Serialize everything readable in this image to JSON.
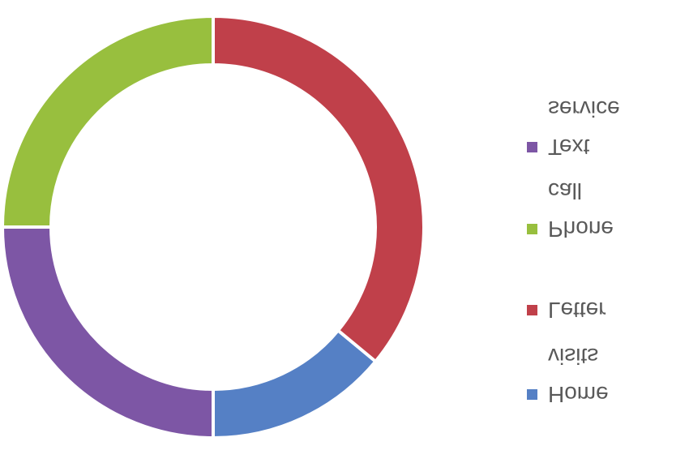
{
  "chart_data": {
    "type": "donut",
    "categories": [
      "Home visits",
      "Letter",
      "Phone call",
      "Text service"
    ],
    "values": [
      14,
      36,
      25,
      25
    ],
    "colors": [
      "#5580c5",
      "#c0404a",
      "#98bf3e",
      "#7d56a5"
    ],
    "legend": "right",
    "flipped": "vertical"
  }
}
